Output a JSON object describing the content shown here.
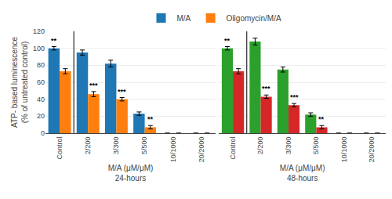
{
  "chart_data": [
    {
      "type": "bar",
      "categories": [
        "Control",
        "2/200",
        "3/300",
        "5/500",
        "10/1000",
        "20/2000"
      ],
      "series": [
        {
          "name": "M/A",
          "values": [
            100,
            95,
            82,
            23,
            0,
            0
          ],
          "errors": [
            2,
            3,
            4,
            2,
            0,
            0
          ]
        },
        {
          "name": "Oligomycin/M/A",
          "values": [
            73,
            46,
            40,
            7,
            0,
            0
          ],
          "errors": [
            3,
            3,
            2,
            2,
            0,
            0
          ]
        }
      ],
      "annotations": [
        {
          "category": "Control",
          "series": "M/A",
          "text": "**"
        },
        {
          "category": "2/200",
          "series": "Oligomycin/M/A",
          "text": "***"
        },
        {
          "category": "3/300",
          "series": "Oligomycin/M/A",
          "text": "***"
        },
        {
          "category": "5/500",
          "series": "Oligomycin/M/A",
          "text": "**"
        }
      ],
      "xlabel": "M/A (μM/μM)\n24-hours",
      "ylabel": "ATP- based luminescence\n(% of untreated control)",
      "ylim": [
        0,
        120
      ],
      "yticks": [
        0,
        20,
        40,
        60,
        80,
        100,
        120
      ],
      "grid": true,
      "legend": "top"
    },
    {
      "type": "bar",
      "categories": [
        "Control",
        "2/200",
        "3/300",
        "5/500",
        "10/1000",
        "20/2000"
      ],
      "series": [
        {
          "name": "M/A",
          "values": [
            100,
            108,
            75,
            22,
            0,
            0
          ],
          "errors": [
            2,
            4,
            3,
            2,
            0,
            0
          ]
        },
        {
          "name": "Oligomycin/M/A",
          "values": [
            73,
            43,
            33,
            7,
            0,
            0
          ],
          "errors": [
            3,
            2,
            2,
            2,
            0,
            0
          ]
        }
      ],
      "annotations": [
        {
          "category": "Control",
          "series": "M/A",
          "text": "**"
        },
        {
          "category": "2/200",
          "series": "Oligomycin/M/A",
          "text": "***"
        },
        {
          "category": "3/300",
          "series": "Oligomycin/M/A",
          "text": "***"
        },
        {
          "category": "5/500",
          "series": "Oligomycin/M/A",
          "text": "**"
        }
      ],
      "xlabel": "M/A (μM/μM)\n48-hours",
      "ylim": [
        0,
        120
      ],
      "yticks": [
        0,
        20,
        40,
        60,
        80,
        100,
        120
      ],
      "grid": true,
      "tick_labels": "x"
    }
  ]
}
